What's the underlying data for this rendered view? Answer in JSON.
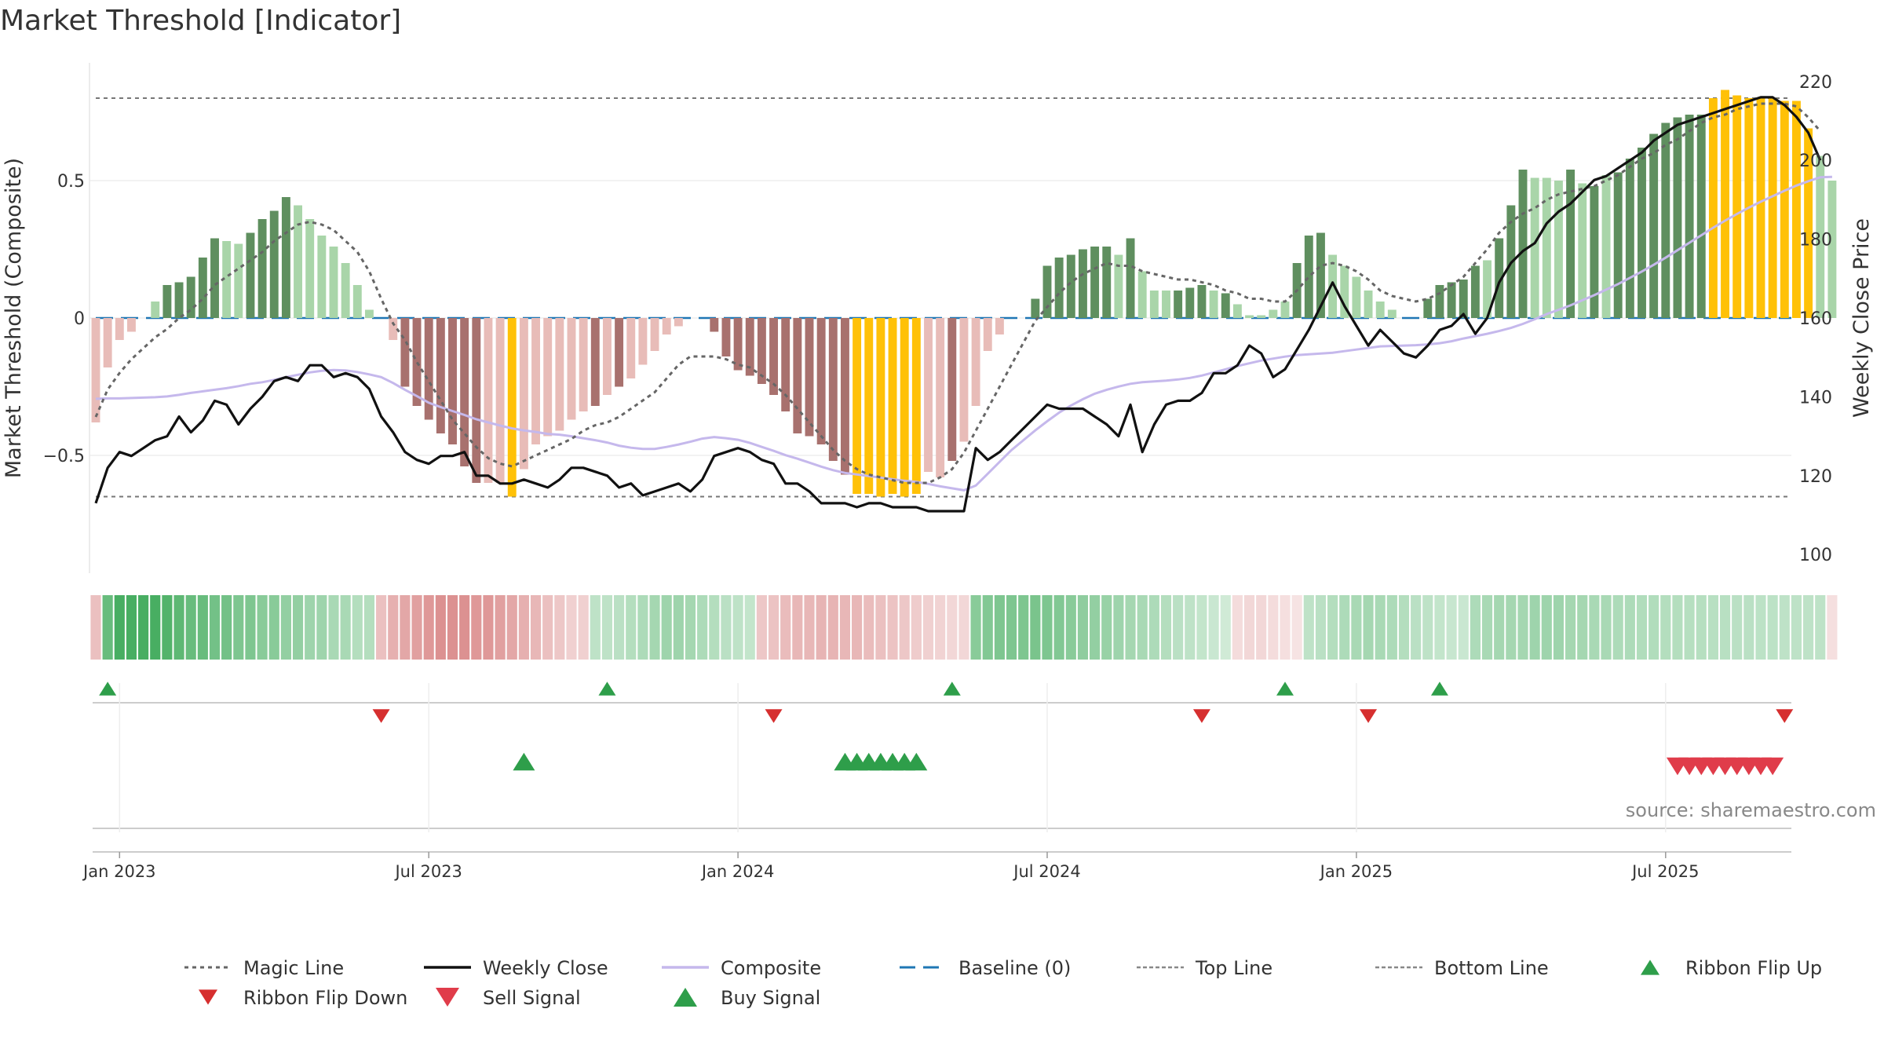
{
  "title": "Market Threshold [Indicator]",
  "source": "source: sharemaestro.com",
  "colors": {
    "pos_dark": "#5f8f5f",
    "pos_light": "#a9d5a9",
    "neg_dark": "#a8716e",
    "neg_light": "#e8bcb8",
    "extreme": "#ffc107",
    "magic": "#666666",
    "close": "#111111",
    "composite": "#c5b8ec",
    "baseline": "#1f77b4",
    "refline": "#777777",
    "buy": "#2e9e4a",
    "sell": "#e03c4a",
    "flip_up": "#2e9e4a",
    "flip_down": "#d62f2f"
  },
  "chart_data": {
    "type": "bar",
    "title": "Market Threshold [Indicator]",
    "ylabel": "Market Threshold (Composite)",
    "ylabel_right": "Weekly Close Price",
    "ylim": [
      -0.92,
      0.92
    ],
    "ylim_right": [
      100,
      225
    ],
    "y_ticks": [
      {
        "v": 0.5,
        "label": "0.5"
      },
      {
        "v": 0,
        "label": "0"
      },
      {
        "v": -0.5,
        "label": "−0.5"
      }
    ],
    "y_right_ticks": [
      {
        "v": 220,
        "label": "220"
      },
      {
        "v": 200,
        "label": "200"
      },
      {
        "v": 180,
        "label": "180"
      },
      {
        "v": 160,
        "label": "160"
      },
      {
        "v": 140,
        "label": "140"
      },
      {
        "v": 120,
        "label": "120"
      },
      {
        "v": 100,
        "label": "100"
      }
    ],
    "x_ticks": [
      {
        "week": 2,
        "label": "Jan 2023"
      },
      {
        "week": 28,
        "label": "Jul 2023"
      },
      {
        "week": 54,
        "label": "Jan 2024"
      },
      {
        "week": 80,
        "label": "Jul 2024"
      },
      {
        "week": 106,
        "label": "Jan 2025"
      },
      {
        "week": 132,
        "label": "Jul 2025"
      }
    ],
    "top_line": 0.8,
    "bottom_line": -0.65,
    "baseline": 0,
    "composite_bars": [
      -0.38,
      -0.18,
      -0.08,
      -0.05,
      0,
      0.06,
      0.12,
      0.13,
      0.15,
      0.22,
      0.29,
      0.28,
      0.27,
      0.31,
      0.36,
      0.39,
      0.44,
      0.41,
      0.36,
      0.3,
      0.26,
      0.2,
      0.12,
      0.03,
      0,
      -0.08,
      -0.25,
      -0.32,
      -0.37,
      -0.42,
      -0.46,
      -0.54,
      -0.6,
      -0.6,
      -0.6,
      -0.65,
      -0.55,
      -0.46,
      -0.43,
      -0.41,
      -0.37,
      -0.34,
      -0.32,
      -0.28,
      -0.25,
      -0.22,
      -0.17,
      -0.12,
      -0.06,
      -0.03,
      0,
      0,
      -0.05,
      -0.14,
      -0.19,
      -0.21,
      -0.24,
      -0.28,
      -0.34,
      -0.42,
      -0.43,
      -0.46,
      -0.52,
      -0.57,
      -0.64,
      -0.64,
      -0.65,
      -0.64,
      -0.65,
      -0.64,
      -0.56,
      -0.58,
      -0.52,
      -0.45,
      -0.32,
      -0.12,
      -0.06,
      0,
      0,
      0.07,
      0.19,
      0.22,
      0.23,
      0.25,
      0.26,
      0.26,
      0.23,
      0.29,
      0.17,
      0.1,
      0.1,
      0.1,
      0.11,
      0.12,
      0.1,
      0.09,
      0.05,
      0.01,
      0.01,
      0.03,
      0.06,
      0.2,
      0.3,
      0.31,
      0.23,
      0.19,
      0.15,
      0.1,
      0.06,
      0.03,
      0,
      0,
      0.07,
      0.12,
      0.13,
      0.14,
      0.19,
      0.21,
      0.29,
      0.41,
      0.54,
      0.51,
      0.51,
      0.5,
      0.54,
      0.49,
      0.48,
      0.52,
      0.53,
      0.58,
      0.62,
      0.67,
      0.71,
      0.73,
      0.74,
      0.74,
      0.8,
      0.83,
      0.81,
      0.8,
      0.8,
      0.8,
      0.79,
      0.79,
      0.69,
      0.59,
      0.5
    ],
    "bar_class": [
      "nl",
      "nl",
      "nl",
      "nl",
      "pd",
      "pl",
      "pd",
      "pd",
      "pd",
      "pd",
      "pd",
      "pl",
      "pl",
      "pd",
      "pd",
      "pd",
      "pd",
      "pl",
      "pl",
      "pl",
      "pl",
      "pl",
      "pl",
      "pl",
      "nl",
      "nl",
      "nd",
      "nd",
      "nd",
      "nd",
      "nd",
      "nd",
      "nd",
      "nl",
      "nl",
      "ex",
      "nl",
      "nl",
      "nl",
      "nl",
      "nl",
      "nl",
      "nd",
      "nl",
      "nd",
      "nl",
      "nl",
      "nl",
      "nl",
      "nl",
      "pl",
      "pl",
      "nd",
      "nd",
      "nd",
      "nd",
      "nd",
      "nd",
      "nd",
      "nd",
      "nd",
      "nd",
      "nd",
      "nd",
      "ex",
      "ex",
      "ex",
      "ex",
      "ex",
      "ex",
      "nl",
      "nl",
      "nd",
      "nl",
      "nl",
      "nl",
      "nl",
      "nl",
      "pl",
      "pd",
      "pd",
      "pd",
      "pd",
      "pd",
      "pd",
      "pd",
      "pl",
      "pd",
      "pl",
      "pl",
      "pl",
      "pd",
      "pd",
      "pd",
      "pl",
      "pd",
      "pl",
      "pl",
      "pl",
      "pl",
      "pl",
      "pd",
      "pd",
      "pd",
      "pl",
      "pl",
      "pl",
      "pl",
      "pl",
      "pl",
      "pl",
      "pl",
      "pd",
      "pd",
      "pd",
      "pd",
      "pd",
      "pl",
      "pd",
      "pd",
      "pd",
      "pl",
      "pl",
      "pl",
      "pd",
      "pl",
      "pd",
      "pl",
      "pd",
      "pd",
      "pd",
      "pd",
      "pd",
      "pd",
      "pd",
      "pd",
      "ex",
      "ex",
      "ex",
      "ex",
      "ex",
      "ex",
      "ex",
      "ex",
      "ex",
      "pl",
      "pl",
      "pl"
    ],
    "magic_line": [
      -0.36,
      -0.26,
      -0.2,
      -0.15,
      -0.11,
      -0.07,
      -0.04,
      0,
      0.03,
      0.07,
      0.12,
      0.15,
      0.18,
      0.21,
      0.24,
      0.28,
      0.31,
      0.34,
      0.35,
      0.34,
      0.32,
      0.28,
      0.24,
      0.17,
      0.07,
      -0.02,
      -0.08,
      -0.16,
      -0.23,
      -0.3,
      -0.37,
      -0.42,
      -0.47,
      -0.51,
      -0.53,
      -0.54,
      -0.52,
      -0.5,
      -0.48,
      -0.46,
      -0.44,
      -0.41,
      -0.39,
      -0.38,
      -0.36,
      -0.33,
      -0.3,
      -0.27,
      -0.22,
      -0.17,
      -0.14,
      -0.14,
      -0.14,
      -0.15,
      -0.17,
      -0.18,
      -0.21,
      -0.24,
      -0.28,
      -0.33,
      -0.38,
      -0.43,
      -0.48,
      -0.52,
      -0.55,
      -0.57,
      -0.58,
      -0.59,
      -0.6,
      -0.6,
      -0.6,
      -0.58,
      -0.55,
      -0.49,
      -0.41,
      -0.33,
      -0.25,
      -0.17,
      -0.09,
      -0.01,
      0.04,
      0.09,
      0.13,
      0.16,
      0.18,
      0.2,
      0.19,
      0.19,
      0.17,
      0.16,
      0.15,
      0.14,
      0.14,
      0.13,
      0.12,
      0.1,
      0.09,
      0.07,
      0.07,
      0.06,
      0.06,
      0.1,
      0.15,
      0.19,
      0.2,
      0.19,
      0.17,
      0.14,
      0.1,
      0.08,
      0.07,
      0.06,
      0.07,
      0.09,
      0.12,
      0.15,
      0.2,
      0.25,
      0.31,
      0.35,
      0.38,
      0.4,
      0.43,
      0.45,
      0.46,
      0.47,
      0.48,
      0.5,
      0.52,
      0.55,
      0.58,
      0.6,
      0.63,
      0.65,
      0.68,
      0.71,
      0.73,
      0.74,
      0.76,
      0.77,
      0.78,
      0.78,
      0.78,
      0.77,
      0.73,
      0.68
    ],
    "weekly_close": [
      113,
      122,
      126,
      125,
      127,
      129,
      130,
      135,
      131,
      134,
      139,
      138,
      133,
      137,
      140,
      144,
      145,
      144,
      148,
      148,
      145,
      146,
      145,
      142,
      135,
      131,
      126,
      124,
      123,
      125,
      125,
      126,
      120,
      120,
      118,
      118,
      119,
      118,
      117,
      119,
      122,
      122,
      121,
      120,
      117,
      118,
      115,
      116,
      117,
      118,
      116,
      119,
      125,
      126,
      127,
      126,
      124,
      123,
      118,
      118,
      116,
      113,
      113,
      113,
      112,
      113,
      113,
      112,
      112,
      112,
      111,
      111,
      111,
      111,
      127,
      124,
      126,
      129,
      132,
      135,
      138,
      137,
      137,
      137,
      135,
      133,
      130,
      138,
      126,
      133,
      138,
      139,
      139,
      141,
      146,
      146,
      148,
      153,
      151,
      145,
      147,
      152,
      157,
      163,
      169,
      163,
      158,
      153,
      157,
      154,
      151,
      150,
      153,
      157,
      158,
      161,
      156,
      160,
      169,
      174,
      177,
      179,
      184,
      187,
      189,
      192,
      195,
      196,
      198,
      200,
      202,
      205,
      207,
      209,
      210,
      211,
      212,
      213,
      214,
      215,
      216,
      216,
      214,
      211,
      207,
      200
    ],
    "composite_line": [
      139.5,
      139.6,
      139.6,
      139.7,
      139.8,
      139.9,
      140.1,
      140.5,
      141,
      141.4,
      141.8,
      142.2,
      142.7,
      143.3,
      143.7,
      144.3,
      145,
      145.6,
      146.2,
      146.6,
      146.8,
      146.7,
      146.3,
      145.7,
      145,
      143.5,
      141.8,
      140.2,
      138.5,
      137.4,
      136.4,
      135.4,
      134.3,
      133.5,
      132.7,
      132,
      131.5,
      131.1,
      130.6,
      130.4,
      130,
      129.5,
      129,
      128.4,
      127.6,
      127.1,
      126.8,
      126.8,
      127.3,
      127.9,
      128.6,
      129.4,
      129.8,
      129.5,
      129.1,
      128.3,
      127.3,
      126.3,
      125.2,
      124.3,
      123.3,
      122.3,
      121.4,
      120.7,
      120.3,
      119.9,
      119.5,
      119.1,
      118.7,
      118.4,
      117.9,
      117.3,
      116.8,
      116.3,
      117.5,
      120.5,
      123.5,
      126.5,
      129,
      131.5,
      133.8,
      136,
      137.8,
      139.4,
      140.8,
      141.8,
      142.6,
      143.3,
      143.7,
      143.9,
      144.1,
      144.4,
      144.8,
      145.4,
      146.2,
      147,
      147.8,
      148.5,
      149.2,
      149.7,
      150.2,
      150.6,
      150.8,
      151,
      151.2,
      151.6,
      152,
      152.4,
      152.8,
      152.9,
      153,
      153.1,
      153.3,
      153.6,
      154.1,
      154.8,
      155.4,
      156,
      156.7,
      157.5,
      158.5,
      159.7,
      161,
      162.1,
      163.2,
      164.5,
      165.8,
      167.2,
      168.6,
      170.2,
      171.8,
      173.5,
      175.3,
      177.2,
      179.1,
      181,
      182.9,
      184.7,
      186.4,
      188,
      189.5,
      190.9,
      192.3,
      193.6,
      194.7,
      195.7,
      195.8
    ]
  },
  "ribbon": [
    -0.4,
    0.7,
    0.85,
    0.85,
    0.85,
    0.85,
    0.8,
    0.75,
    0.7,
    0.7,
    0.65,
    0.65,
    0.6,
    0.6,
    0.55,
    0.55,
    0.5,
    0.5,
    0.45,
    0.45,
    0.4,
    0.4,
    0.35,
    0.35,
    -0.4,
    -0.5,
    -0.55,
    -0.6,
    -0.65,
    -0.7,
    -0.7,
    -0.7,
    -0.65,
    -0.65,
    -0.6,
    -0.55,
    -0.5,
    -0.45,
    -0.4,
    -0.35,
    -0.3,
    -0.3,
    0.3,
    0.3,
    0.32,
    0.35,
    0.38,
    0.42,
    0.45,
    0.45,
    0.42,
    0.38,
    0.35,
    0.32,
    0.3,
    0.28,
    -0.35,
    -0.38,
    -0.42,
    -0.45,
    -0.45,
    -0.48,
    -0.48,
    -0.45,
    -0.45,
    -0.42,
    -0.4,
    -0.38,
    -0.35,
    -0.32,
    -0.3,
    -0.28,
    -0.25,
    -0.25,
    0.55,
    0.58,
    0.6,
    0.6,
    0.6,
    0.62,
    0.6,
    0.58,
    0.55,
    0.52,
    0.5,
    0.48,
    0.45,
    0.42,
    0.4,
    0.38,
    0.35,
    0.32,
    0.3,
    0.28,
    0.25,
    0.22,
    -0.22,
    -0.25,
    -0.25,
    -0.22,
    -0.2,
    -0.18,
    0.3,
    0.32,
    0.35,
    0.38,
    0.4,
    0.42,
    0.4,
    0.38,
    0.35,
    0.32,
    0.3,
    0.28,
    0.26,
    0.25,
    0.38,
    0.4,
    0.42,
    0.42,
    0.42,
    0.45,
    0.45,
    0.45,
    0.42,
    0.42,
    0.4,
    0.4,
    0.38,
    0.38,
    0.36,
    0.36,
    0.35,
    0.35,
    0.34,
    0.34,
    0.33,
    0.33,
    0.32,
    0.32,
    0.31,
    0.31,
    0.3,
    0.3,
    0.3,
    0.3,
    -0.2
  ],
  "ribbon_flip_up_weeks": [
    1,
    43,
    72,
    100,
    113
  ],
  "ribbon_flip_down_weeks": [
    24,
    57,
    93,
    107,
    142
  ],
  "buy_signal_weeks": [
    36,
    63,
    64,
    65,
    66,
    67,
    68,
    69
  ],
  "sell_signal_weeks": [
    133,
    134,
    135,
    136,
    137,
    138,
    139,
    140,
    141
  ],
  "legend": [
    {
      "label": "Magic Line",
      "kind": "dotted",
      "color": "#666666"
    },
    {
      "label": "Weekly Close",
      "kind": "solid",
      "color": "#111111"
    },
    {
      "label": "Composite",
      "kind": "solid-light",
      "color": "#c5b8ec"
    },
    {
      "label": "Baseline (0)",
      "kind": "dashed",
      "color": "#1f77b4"
    },
    {
      "label": "Top Line",
      "kind": "fine-dash",
      "color": "#888888"
    },
    {
      "label": "Bottom Line",
      "kind": "fine-dash",
      "color": "#888888"
    },
    {
      "label": "Ribbon Flip Up",
      "kind": "tri-up",
      "color": "#2e9e4a"
    },
    {
      "label": "Ribbon Flip Down",
      "kind": "tri-down",
      "color": "#d62f2f"
    },
    {
      "label": "Sell Signal",
      "kind": "tri-down-big",
      "color": "#e03c4a"
    },
    {
      "label": "Buy Signal",
      "kind": "tri-up-big",
      "color": "#2e9e4a"
    }
  ]
}
